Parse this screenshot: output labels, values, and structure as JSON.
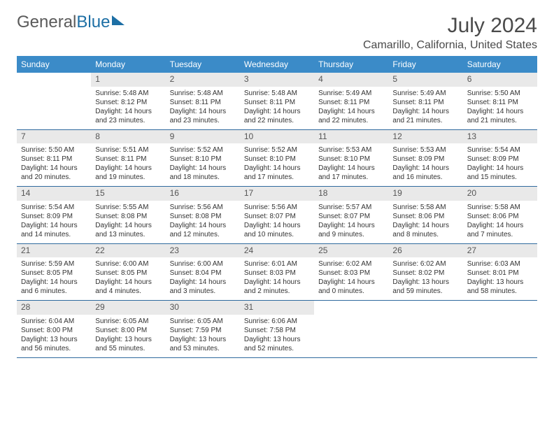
{
  "logo": {
    "word1": "General",
    "word2": "Blue"
  },
  "title": "July 2024",
  "location": "Camarillo, California, United States",
  "weekdays": [
    "Sunday",
    "Monday",
    "Tuesday",
    "Wednesday",
    "Thursday",
    "Friday",
    "Saturday"
  ],
  "colors": {
    "header_bg": "#3b8bc8",
    "header_text": "#ffffff",
    "daynum_bg": "#e9e9e9",
    "border": "#2f6a9e",
    "logo_gray": "#5a5a5a",
    "logo_blue": "#1d6fa5"
  },
  "weeks": [
    [
      {
        "n": "",
        "sr": "",
        "ss": "",
        "dl": "",
        "empty": true
      },
      {
        "n": "1",
        "sr": "Sunrise: 5:48 AM",
        "ss": "Sunset: 8:12 PM",
        "dl": "Daylight: 14 hours and 23 minutes."
      },
      {
        "n": "2",
        "sr": "Sunrise: 5:48 AM",
        "ss": "Sunset: 8:11 PM",
        "dl": "Daylight: 14 hours and 23 minutes."
      },
      {
        "n": "3",
        "sr": "Sunrise: 5:48 AM",
        "ss": "Sunset: 8:11 PM",
        "dl": "Daylight: 14 hours and 22 minutes."
      },
      {
        "n": "4",
        "sr": "Sunrise: 5:49 AM",
        "ss": "Sunset: 8:11 PM",
        "dl": "Daylight: 14 hours and 22 minutes."
      },
      {
        "n": "5",
        "sr": "Sunrise: 5:49 AM",
        "ss": "Sunset: 8:11 PM",
        "dl": "Daylight: 14 hours and 21 minutes."
      },
      {
        "n": "6",
        "sr": "Sunrise: 5:50 AM",
        "ss": "Sunset: 8:11 PM",
        "dl": "Daylight: 14 hours and 21 minutes."
      }
    ],
    [
      {
        "n": "7",
        "sr": "Sunrise: 5:50 AM",
        "ss": "Sunset: 8:11 PM",
        "dl": "Daylight: 14 hours and 20 minutes."
      },
      {
        "n": "8",
        "sr": "Sunrise: 5:51 AM",
        "ss": "Sunset: 8:11 PM",
        "dl": "Daylight: 14 hours and 19 minutes."
      },
      {
        "n": "9",
        "sr": "Sunrise: 5:52 AM",
        "ss": "Sunset: 8:10 PM",
        "dl": "Daylight: 14 hours and 18 minutes."
      },
      {
        "n": "10",
        "sr": "Sunrise: 5:52 AM",
        "ss": "Sunset: 8:10 PM",
        "dl": "Daylight: 14 hours and 17 minutes."
      },
      {
        "n": "11",
        "sr": "Sunrise: 5:53 AM",
        "ss": "Sunset: 8:10 PM",
        "dl": "Daylight: 14 hours and 17 minutes."
      },
      {
        "n": "12",
        "sr": "Sunrise: 5:53 AM",
        "ss": "Sunset: 8:09 PM",
        "dl": "Daylight: 14 hours and 16 minutes."
      },
      {
        "n": "13",
        "sr": "Sunrise: 5:54 AM",
        "ss": "Sunset: 8:09 PM",
        "dl": "Daylight: 14 hours and 15 minutes."
      }
    ],
    [
      {
        "n": "14",
        "sr": "Sunrise: 5:54 AM",
        "ss": "Sunset: 8:09 PM",
        "dl": "Daylight: 14 hours and 14 minutes."
      },
      {
        "n": "15",
        "sr": "Sunrise: 5:55 AM",
        "ss": "Sunset: 8:08 PM",
        "dl": "Daylight: 14 hours and 13 minutes."
      },
      {
        "n": "16",
        "sr": "Sunrise: 5:56 AM",
        "ss": "Sunset: 8:08 PM",
        "dl": "Daylight: 14 hours and 12 minutes."
      },
      {
        "n": "17",
        "sr": "Sunrise: 5:56 AM",
        "ss": "Sunset: 8:07 PM",
        "dl": "Daylight: 14 hours and 10 minutes."
      },
      {
        "n": "18",
        "sr": "Sunrise: 5:57 AM",
        "ss": "Sunset: 8:07 PM",
        "dl": "Daylight: 14 hours and 9 minutes."
      },
      {
        "n": "19",
        "sr": "Sunrise: 5:58 AM",
        "ss": "Sunset: 8:06 PM",
        "dl": "Daylight: 14 hours and 8 minutes."
      },
      {
        "n": "20",
        "sr": "Sunrise: 5:58 AM",
        "ss": "Sunset: 8:06 PM",
        "dl": "Daylight: 14 hours and 7 minutes."
      }
    ],
    [
      {
        "n": "21",
        "sr": "Sunrise: 5:59 AM",
        "ss": "Sunset: 8:05 PM",
        "dl": "Daylight: 14 hours and 6 minutes."
      },
      {
        "n": "22",
        "sr": "Sunrise: 6:00 AM",
        "ss": "Sunset: 8:05 PM",
        "dl": "Daylight: 14 hours and 4 minutes."
      },
      {
        "n": "23",
        "sr": "Sunrise: 6:00 AM",
        "ss": "Sunset: 8:04 PM",
        "dl": "Daylight: 14 hours and 3 minutes."
      },
      {
        "n": "24",
        "sr": "Sunrise: 6:01 AM",
        "ss": "Sunset: 8:03 PM",
        "dl": "Daylight: 14 hours and 2 minutes."
      },
      {
        "n": "25",
        "sr": "Sunrise: 6:02 AM",
        "ss": "Sunset: 8:03 PM",
        "dl": "Daylight: 14 hours and 0 minutes."
      },
      {
        "n": "26",
        "sr": "Sunrise: 6:02 AM",
        "ss": "Sunset: 8:02 PM",
        "dl": "Daylight: 13 hours and 59 minutes."
      },
      {
        "n": "27",
        "sr": "Sunrise: 6:03 AM",
        "ss": "Sunset: 8:01 PM",
        "dl": "Daylight: 13 hours and 58 minutes."
      }
    ],
    [
      {
        "n": "28",
        "sr": "Sunrise: 6:04 AM",
        "ss": "Sunset: 8:00 PM",
        "dl": "Daylight: 13 hours and 56 minutes."
      },
      {
        "n": "29",
        "sr": "Sunrise: 6:05 AM",
        "ss": "Sunset: 8:00 PM",
        "dl": "Daylight: 13 hours and 55 minutes."
      },
      {
        "n": "30",
        "sr": "Sunrise: 6:05 AM",
        "ss": "Sunset: 7:59 PM",
        "dl": "Daylight: 13 hours and 53 minutes."
      },
      {
        "n": "31",
        "sr": "Sunrise: 6:06 AM",
        "ss": "Sunset: 7:58 PM",
        "dl": "Daylight: 13 hours and 52 minutes."
      },
      {
        "n": "",
        "sr": "",
        "ss": "",
        "dl": "",
        "empty": true
      },
      {
        "n": "",
        "sr": "",
        "ss": "",
        "dl": "",
        "empty": true
      },
      {
        "n": "",
        "sr": "",
        "ss": "",
        "dl": "",
        "empty": true
      }
    ]
  ]
}
